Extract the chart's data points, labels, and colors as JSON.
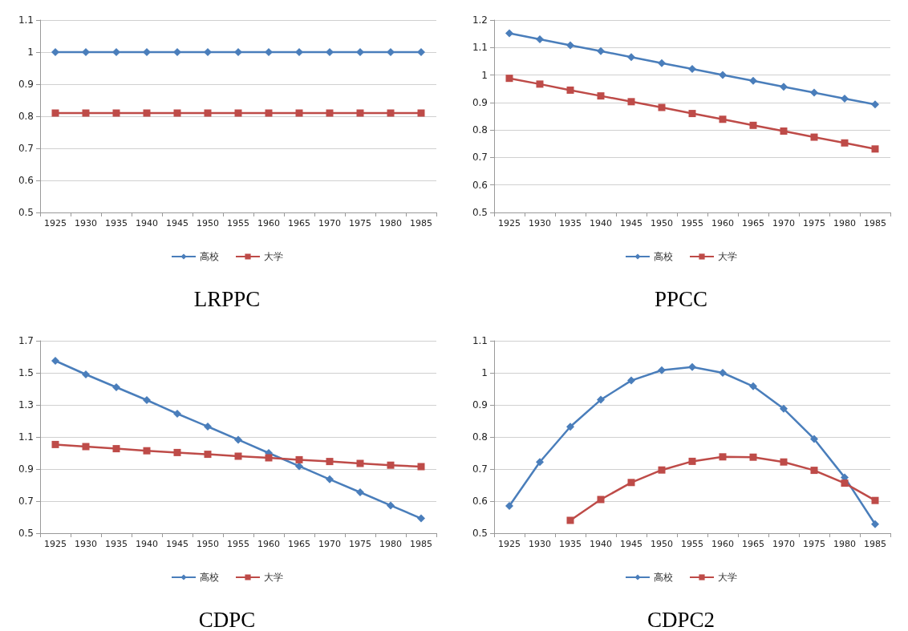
{
  "chart_data": [
    {
      "type": "line",
      "title": "LRPPC",
      "categories": [
        "1925",
        "1930",
        "1935",
        "1940",
        "1945",
        "1950",
        "1955",
        "1960",
        "1965",
        "1970",
        "1975",
        "1980",
        "1985"
      ],
      "ylim": [
        0.5,
        1.1
      ],
      "yticks": [
        0.5,
        0.6,
        0.7,
        0.8,
        0.9,
        1,
        1.1
      ],
      "grid": "y",
      "legend": "bottom",
      "series": [
        {
          "name": "高校",
          "color": "#4a7ebb",
          "marker": "diamond",
          "values": [
            1,
            1,
            1,
            1,
            1,
            1,
            1,
            1,
            1,
            1,
            1,
            1,
            1
          ]
        },
        {
          "name": "大学",
          "color": "#be4b48",
          "marker": "square",
          "values": [
            0.81,
            0.81,
            0.81,
            0.81,
            0.81,
            0.81,
            0.81,
            0.81,
            0.81,
            0.81,
            0.81,
            0.81,
            0.81
          ]
        }
      ]
    },
    {
      "type": "line",
      "title": "PPCC",
      "categories": [
        "1925",
        "1930",
        "1935",
        "1940",
        "1945",
        "1950",
        "1955",
        "1960",
        "1965",
        "1970",
        "1975",
        "1980",
        "1985"
      ],
      "ylim": [
        0.5,
        1.2
      ],
      "yticks": [
        0.5,
        0.6,
        0.7,
        0.8,
        0.9,
        1,
        1.1,
        1.2
      ],
      "grid": "y",
      "legend": "bottom",
      "series": [
        {
          "name": "高校",
          "color": "#4a7ebb",
          "marker": "diamond",
          "values": [
            1.152,
            1.13,
            1.108,
            1.087,
            1.065,
            1.043,
            1.022,
            1.0,
            0.979,
            0.957,
            0.936,
            0.914,
            0.893
          ]
        },
        {
          "name": "大学",
          "color": "#be4b48",
          "marker": "square",
          "values": [
            0.988,
            0.967,
            0.945,
            0.924,
            0.903,
            0.882,
            0.86,
            0.839,
            0.817,
            0.796,
            0.774,
            0.753,
            0.731
          ]
        }
      ]
    },
    {
      "type": "line",
      "title": "CDPC",
      "categories": [
        "1925",
        "1930",
        "1935",
        "1940",
        "1945",
        "1950",
        "1955",
        "1960",
        "1965",
        "1970",
        "1975",
        "1980",
        "1985"
      ],
      "ylim": [
        0.5,
        1.7
      ],
      "yticks": [
        0.5,
        0.7,
        0.9,
        1.1,
        1.3,
        1.5,
        1.7
      ],
      "grid": "y",
      "legend": "bottom",
      "series": [
        {
          "name": "高校",
          "color": "#4a7ebb",
          "marker": "diamond",
          "values": [
            1.575,
            1.49,
            1.41,
            1.33,
            1.245,
            1.165,
            1.083,
            1.0,
            0.918,
            0.836,
            0.755,
            0.673,
            0.592
          ]
        },
        {
          "name": "大学",
          "color": "#be4b48",
          "marker": "square",
          "values": [
            1.053,
            1.04,
            1.027,
            1.014,
            1.003,
            0.992,
            0.98,
            0.97,
            0.958,
            0.947,
            0.935,
            0.924,
            0.915
          ]
        }
      ]
    },
    {
      "type": "line",
      "title": "CDPC2",
      "categories": [
        "1925",
        "1930",
        "1935",
        "1940",
        "1945",
        "1950",
        "1955",
        "1960",
        "1965",
        "1970",
        "1975",
        "1980",
        "1985"
      ],
      "ylim": [
        0.5,
        1.1
      ],
      "yticks": [
        0.5,
        0.6,
        0.7,
        0.8,
        0.9,
        1,
        1.1
      ],
      "grid": "y",
      "legend": "bottom",
      "series": [
        {
          "name": "高校",
          "color": "#4a7ebb",
          "marker": "diamond",
          "values": [
            0.585,
            0.722,
            0.832,
            0.916,
            0.976,
            1.008,
            1.018,
            1.0,
            0.958,
            0.888,
            0.794,
            0.674,
            0.528
          ]
        },
        {
          "name": "大学",
          "color": "#be4b48",
          "marker": "square",
          "values": [
            null,
            null,
            0.54,
            0.605,
            0.658,
            0.697,
            0.724,
            0.738,
            0.737,
            0.722,
            0.696,
            0.656,
            0.602
          ]
        }
      ]
    }
  ]
}
